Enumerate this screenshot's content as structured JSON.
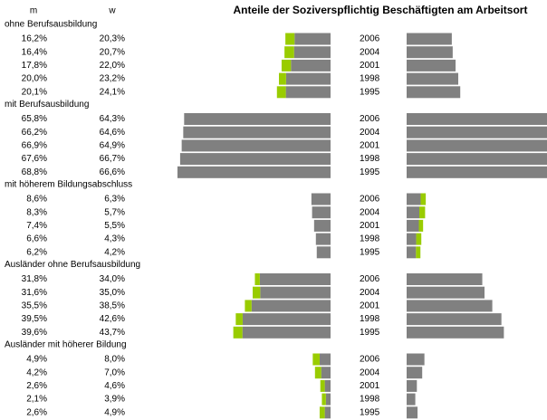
{
  "chart_data": {
    "type": "butterfly",
    "title": "Anteile der Soziverspflichtig Beschäftigten am Arbeitsort",
    "series": [
      {
        "name": "m",
        "color": "#808080"
      },
      {
        "name": "w",
        "color": "#808080"
      }
    ],
    "difference_color": "#99cc00",
    "xlim": [
      0,
      70
    ],
    "groups": [
      {
        "label": "ohne Berufsausbildung",
        "categories": [
          "2006",
          "2004",
          "2001",
          "1998",
          "1995"
        ],
        "values": [
          [
            16.2,
            16.4,
            17.8,
            20.0,
            20.1
          ],
          [
            20.3,
            20.7,
            22.0,
            23.2,
            24.1
          ]
        ],
        "value_labels": [
          [
            "16,2%",
            "16,4%",
            "17,8%",
            "20,0%",
            "20,1%"
          ],
          [
            "20,3%",
            "20,7%",
            "22,0%",
            "23,2%",
            "24,1%"
          ]
        ]
      },
      {
        "label": "mit Berufsausbildung",
        "categories": [
          "2006",
          "2004",
          "2001",
          "1998",
          "1995"
        ],
        "values": [
          [
            65.8,
            66.2,
            66.9,
            67.6,
            68.8
          ],
          [
            64.3,
            64.6,
            64.9,
            66.7,
            66.6
          ]
        ],
        "value_labels": [
          [
            "65,8%",
            "66,2%",
            "66,9%",
            "67,6%",
            "68,8%"
          ],
          [
            "64,3%",
            "64,6%",
            "64,9%",
            "66,7%",
            "66,6%"
          ]
        ]
      },
      {
        "label": "mit höherem Bildungsabschluss",
        "categories": [
          "2006",
          "2004",
          "2001",
          "1998",
          "1995"
        ],
        "values": [
          [
            8.6,
            8.3,
            7.4,
            6.6,
            6.2
          ],
          [
            6.3,
            5.7,
            5.5,
            4.3,
            4.2
          ]
        ],
        "value_labels": [
          [
            "8,6%",
            "8,3%",
            "7,4%",
            "6,6%",
            "6,2%"
          ],
          [
            "6,3%",
            "5,7%",
            "5,5%",
            "4,3%",
            "4,2%"
          ]
        ]
      },
      {
        "label": "Ausländer ohne Berufsausbildung",
        "categories": [
          "2006",
          "2004",
          "2001",
          "1998",
          "1995"
        ],
        "values": [
          [
            31.8,
            31.6,
            35.5,
            39.5,
            39.6
          ],
          [
            34.0,
            35.0,
            38.5,
            42.6,
            43.7
          ]
        ],
        "value_labels": [
          [
            "31,8%",
            "31,6%",
            "35,5%",
            "39,5%",
            "39,6%"
          ],
          [
            "34,0%",
            "35,0%",
            "38,5%",
            "42,6%",
            "43,7%"
          ]
        ]
      },
      {
        "label": "Ausländer mit höherer Bildung",
        "categories": [
          "2006",
          "2004",
          "2001",
          "1998",
          "1995"
        ],
        "values": [
          [
            4.9,
            4.2,
            2.6,
            2.1,
            2.6
          ],
          [
            8.0,
            7.0,
            4.6,
            3.9,
            4.9
          ]
        ],
        "value_labels": [
          [
            "4,9%",
            "4,2%",
            "2,6%",
            "2,1%",
            "2,6%"
          ],
          [
            "8,0%",
            "7,0%",
            "4,6%",
            "3,9%",
            "4,9%"
          ]
        ]
      }
    ]
  }
}
